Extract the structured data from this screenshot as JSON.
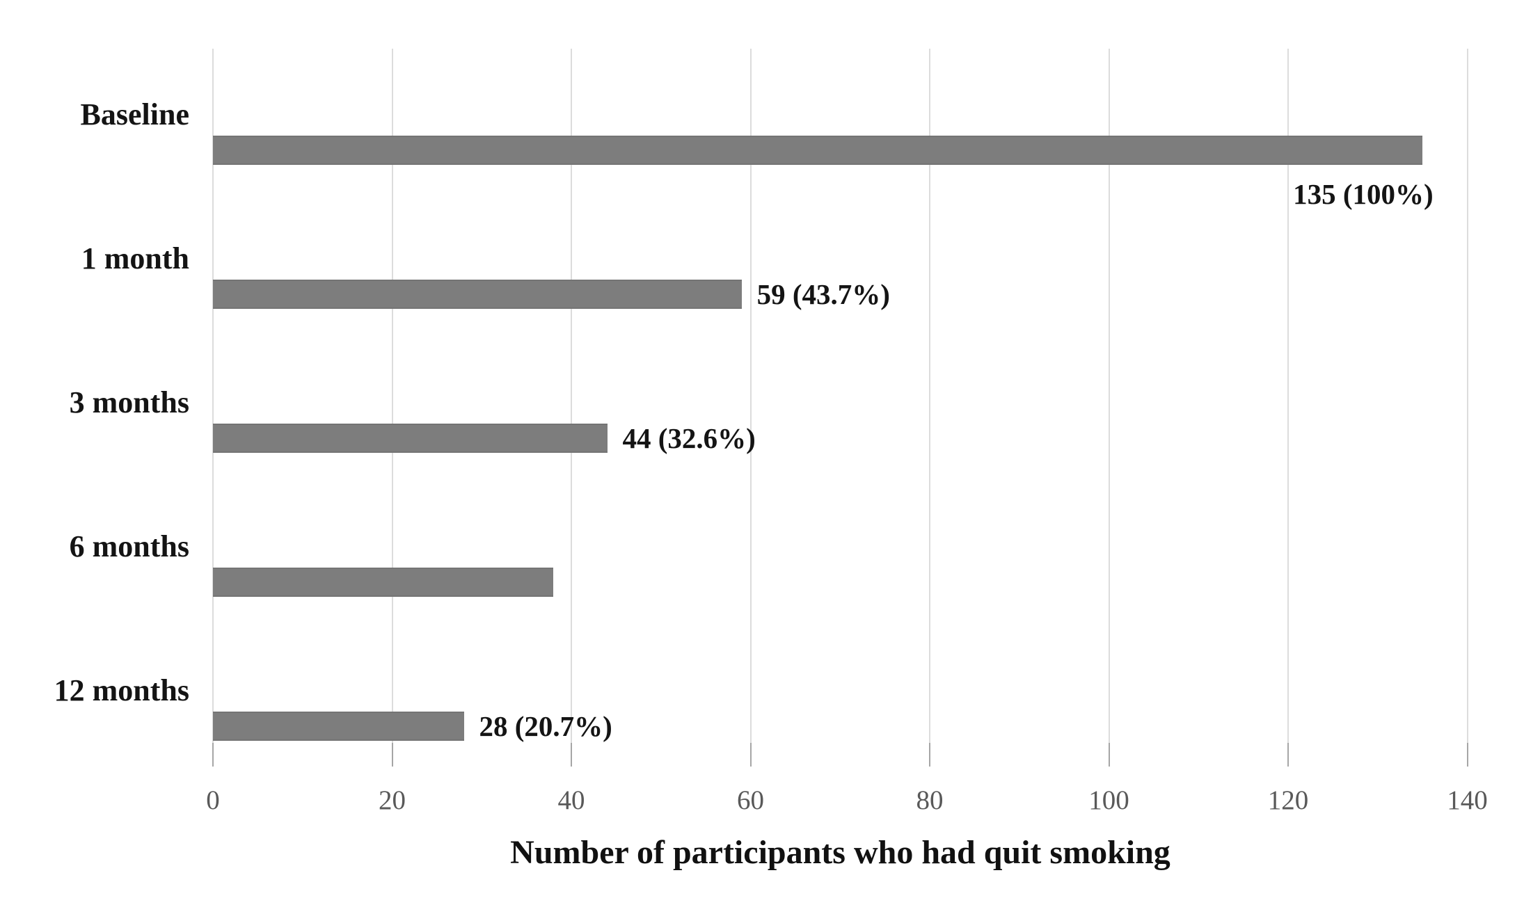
{
  "chart_data": {
    "type": "bar",
    "orientation": "horizontal",
    "title": "",
    "xlabel": "Number of participants who had quit smoking",
    "ylabel": "",
    "categories": [
      "Baseline",
      "1 month",
      "3 months",
      "6 months",
      "12 months"
    ],
    "values": [
      135,
      59,
      44,
      38,
      28
    ],
    "bar_labels": [
      "135 (100%)",
      "59 (43.7%)",
      "44 (32.6%)",
      "",
      "28 (20.7%)"
    ],
    "label_placements": [
      "below-bar-end",
      "right-of-bar",
      "right-of-bar",
      "none",
      "right-of-bar"
    ],
    "xlim": [
      0,
      140
    ],
    "xticks": [
      "0",
      "20",
      "40",
      "60",
      "80",
      "100",
      "120",
      "140"
    ],
    "grid": true,
    "legend": "none",
    "colors": {
      "bar": "#7d7d7d",
      "gridline": "#dcdcdc",
      "tick": "#a6a6a6",
      "tick_label": "#595959",
      "text": "#141414"
    }
  }
}
